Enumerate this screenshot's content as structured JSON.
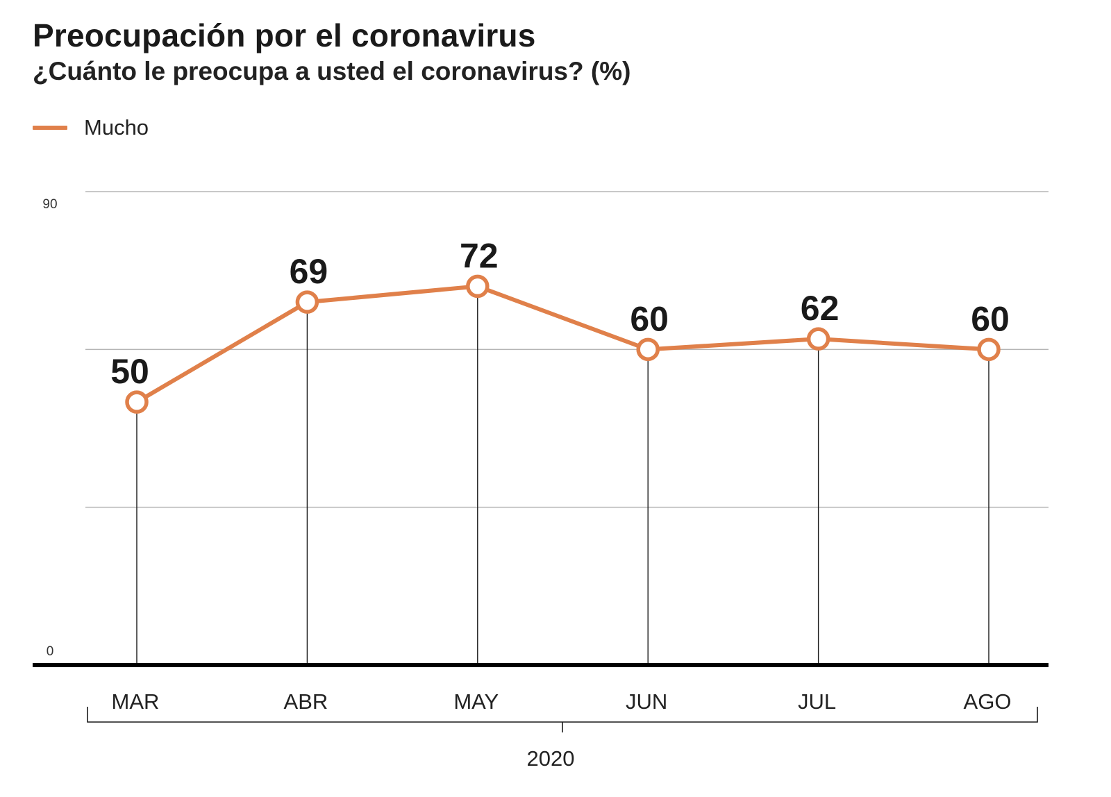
{
  "chart_data": {
    "type": "line",
    "title": "Preocupación por el coronavirus",
    "subtitle": "¿Cuánto le preocupa a usted el coronavirus?   (%)",
    "categories": [
      "MAR",
      "ABR",
      "MAY",
      "JUN",
      "JUL",
      "AGO"
    ],
    "group_label": "2020",
    "series": [
      {
        "name": "Mucho",
        "values": [
          50,
          69,
          72,
          60,
          62,
          60
        ],
        "labels": [
          "50",
          "69",
          "72",
          "60",
          "62",
          "60"
        ],
        "color": "#e0804a"
      }
    ],
    "ylim": [
      0,
      90
    ],
    "yticks": [
      "0",
      "90"
    ],
    "gridlines": [
      90,
      60,
      30
    ],
    "grid": true,
    "legend": "top-left"
  }
}
